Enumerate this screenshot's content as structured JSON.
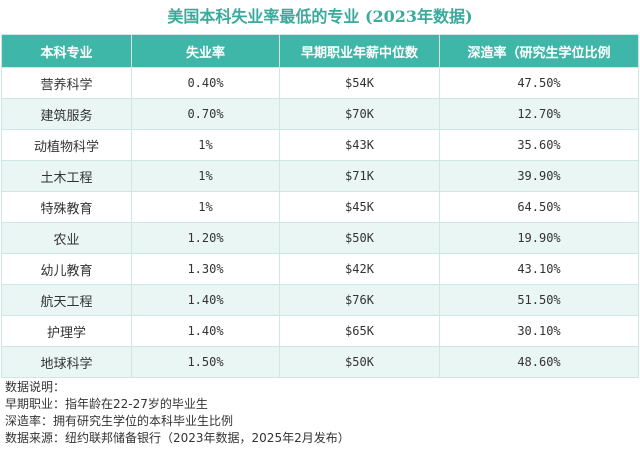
{
  "title": "美国本科失业率最低的专业 (2023年数据)",
  "table": {
    "headers": [
      "本科专业",
      "失业率",
      "早期职业年薪中位数",
      "深造率（研究生学位比例"
    ],
    "rows": [
      [
        "营养科学",
        "0.40%",
        "$54K",
        "47.50%"
      ],
      [
        "建筑服务",
        "0.70%",
        "$70K",
        "12.70%"
      ],
      [
        "动植物科学",
        "1%",
        "$43K",
        "35.60%"
      ],
      [
        "土木工程",
        "1%",
        "$71K",
        "39.90%"
      ],
      [
        "特殊教育",
        "1%",
        "$45K",
        "64.50%"
      ],
      [
        "农业",
        "1.20%",
        "$50K",
        "19.90%"
      ],
      [
        "幼儿教育",
        "1.30%",
        "$42K",
        "43.10%"
      ],
      [
        "航天工程",
        "1.40%",
        "$76K",
        "51.50%"
      ],
      [
        "护理学",
        "1.40%",
        "$65K",
        "30.10%"
      ],
      [
        "地球科学",
        "1.50%",
        "$50K",
        "48.60%"
      ]
    ]
  },
  "notes": [
    "数据说明：",
    "早期职业：指年龄在22-27岁的毕业生",
    "深造率：拥有研究生学位的本科毕业生比例",
    "数据来源：纽约联邦储备银行（2023年数据，2025年2月发布）"
  ],
  "colors": {
    "accent": "#3fb7a8",
    "title": "#3aaa9c",
    "stripe": "#eaf6f4"
  }
}
